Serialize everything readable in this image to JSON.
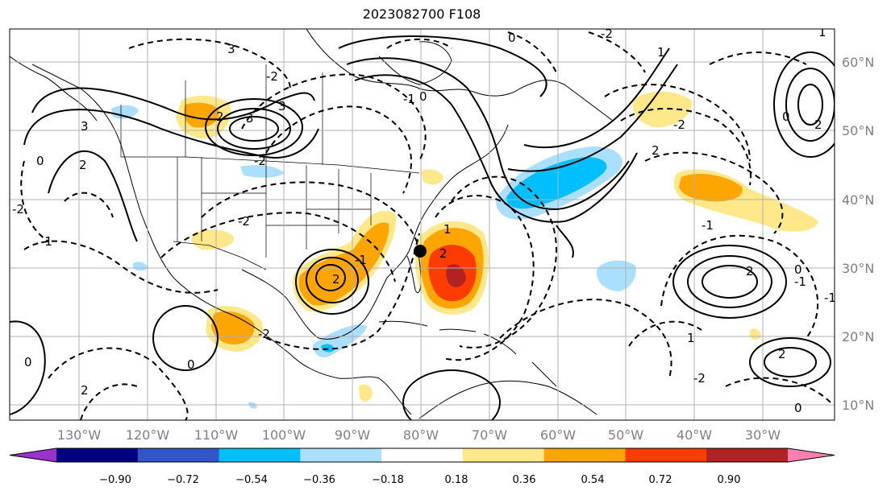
{
  "title": "2023082700 F108",
  "map": {
    "lon_labels": [
      "130°W",
      "120°W",
      "110°W",
      "100°W",
      "90°W",
      "80°W",
      "70°W",
      "60°W",
      "50°W",
      "40°W",
      "30°W"
    ],
    "lat_labels": [
      "60°N",
      "50°N",
      "40°N",
      "30°N",
      "20°N",
      "10°N"
    ],
    "contour_labels": [
      "3",
      "3",
      "-2",
      "2",
      "3",
      "3",
      "2",
      "0",
      "-2",
      "-1",
      "0",
      "2",
      "-2",
      "-2",
      "2",
      "-1",
      "-2",
      "2",
      "1",
      "-2",
      "1",
      "0",
      "-1",
      "0",
      "-2",
      "2",
      "-1",
      "1",
      "0",
      "2",
      "2",
      "-1",
      "0",
      "1",
      "-2",
      "2",
      "-1",
      "0",
      "0"
    ],
    "marker": "storm-center-dot"
  },
  "colorbar": {
    "tick_labels": [
      "−0.90",
      "−0.72",
      "−0.54",
      "−0.36",
      "−0.18",
      "0.18",
      "0.36",
      "0.54",
      "0.72",
      "0.90"
    ],
    "colors": [
      "#9933cc",
      "#000080",
      "#3355cc",
      "#00bfff",
      "#aadfff",
      "#ffffff",
      "#ffe88a",
      "#ffa500",
      "#ff3c00",
      "#b22222",
      "#ff80b0"
    ]
  }
}
